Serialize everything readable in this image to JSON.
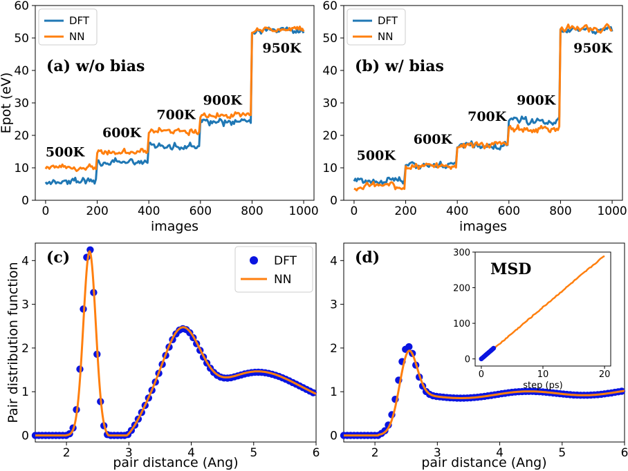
{
  "colors": {
    "dft": "#1f77b4",
    "nn": "#ff7f0e",
    "dft_points": "#0a14e0"
  },
  "chart_data": [
    {
      "id": "a",
      "type": "line",
      "panel_label": "(a)  w/o bias",
      "xlabel": "images",
      "ylabel": "Epot (eV)",
      "xlim": [
        -40,
        1040
      ],
      "ylim": [
        0,
        60
      ],
      "xticks": [
        0,
        200,
        400,
        600,
        800,
        1000
      ],
      "yticks": [
        0,
        10,
        20,
        30,
        40,
        50,
        60
      ],
      "legend": {
        "placement": "top-left",
        "entries": [
          "DFT",
          "NN"
        ]
      },
      "annotations": [
        {
          "text": "500K",
          "x": 0,
          "y": 13.5
        },
        {
          "text": "600K",
          "x": 220,
          "y": 19.5
        },
        {
          "text": "700K",
          "x": 430,
          "y": 25
        },
        {
          "text": "900K",
          "x": 610,
          "y": 29.5
        },
        {
          "text": "950K",
          "x": 840,
          "y": 45.5
        }
      ],
      "series": [
        {
          "name": "DFT",
          "segments": [
            {
              "x": [
                0,
                200
              ],
              "level": 6.0,
              "noise": 1.0
            },
            {
              "x": [
                200,
                400
              ],
              "level": 11.5,
              "noise": 0.9
            },
            {
              "x": [
                400,
                600
              ],
              "level": 17.0,
              "noise": 1.0
            },
            {
              "x": [
                600,
                800
              ],
              "level": 24.0,
              "noise": 1.0
            },
            {
              "x": [
                800,
                1000
              ],
              "level": 52.0,
              "noise": 0.8
            }
          ]
        },
        {
          "name": "NN",
          "segments": [
            {
              "x": [
                0,
                200
              ],
              "level": 10.0,
              "noise": 0.9
            },
            {
              "x": [
                200,
                400
              ],
              "level": 15.0,
              "noise": 0.9
            },
            {
              "x": [
                400,
                600
              ],
              "level": 21.5,
              "noise": 0.9
            },
            {
              "x": [
                600,
                800
              ],
              "level": 26.0,
              "noise": 0.9
            },
            {
              "x": [
                800,
                1000
              ],
              "level": 52.5,
              "noise": 0.8
            }
          ]
        }
      ]
    },
    {
      "id": "b",
      "type": "line",
      "panel_label": "(b)  w/ bias",
      "xlabel": "images",
      "ylabel": "",
      "xlim": [
        -40,
        1040
      ],
      "ylim": [
        0,
        60
      ],
      "xticks": [
        0,
        200,
        400,
        600,
        800,
        1000
      ],
      "yticks": [
        0,
        10,
        20,
        30,
        40,
        50,
        60
      ],
      "legend": {
        "placement": "top-left",
        "entries": [
          "DFT",
          "NN"
        ]
      },
      "annotations": [
        {
          "text": "500K",
          "x": 10,
          "y": 12.5
        },
        {
          "text": "600K",
          "x": 230,
          "y": 17.5
        },
        {
          "text": "700K",
          "x": 440,
          "y": 24.5
        },
        {
          "text": "900K",
          "x": 630,
          "y": 29.5
        },
        {
          "text": "950K",
          "x": 850,
          "y": 45.5
        }
      ],
      "series": [
        {
          "name": "DFT",
          "segments": [
            {
              "x": [
                0,
                200
              ],
              "level": 6.0,
              "noise": 0.9
            },
            {
              "x": [
                200,
                400
              ],
              "level": 11.0,
              "noise": 0.9
            },
            {
              "x": [
                400,
                600
              ],
              "level": 17.0,
              "noise": 1.0
            },
            {
              "x": [
                600,
                800
              ],
              "level": 24.5,
              "noise": 1.1
            },
            {
              "x": [
                800,
                1000
              ],
              "level": 52.5,
              "noise": 0.8
            }
          ]
        },
        {
          "name": "NN",
          "segments": [
            {
              "x": [
                0,
                200
              ],
              "level": 4.5,
              "noise": 0.9
            },
            {
              "x": [
                200,
                400
              ],
              "level": 10.5,
              "noise": 0.9
            },
            {
              "x": [
                400,
                600
              ],
              "level": 17.0,
              "noise": 1.0
            },
            {
              "x": [
                600,
                800
              ],
              "level": 22.0,
              "noise": 1.1
            },
            {
              "x": [
                800,
                1000
              ],
              "level": 53.0,
              "noise": 0.9
            }
          ]
        }
      ]
    },
    {
      "id": "c",
      "type": "line",
      "panel_label": "(c)",
      "xlabel": "pair distance (Ang)",
      "ylabel": "Pair distribution function",
      "xlim": [
        1.5,
        6
      ],
      "ylim": [
        -0.15,
        4.4
      ],
      "xticks": [
        2,
        3,
        4,
        5,
        6
      ],
      "yticks": [
        0,
        1,
        2,
        3,
        4
      ],
      "legend": {
        "placement": "top-right",
        "entries": [
          "DFT",
          "NN"
        ]
      },
      "series": [
        {
          "name": "DFT",
          "style": "markers",
          "peaks": [
            [
              2.36,
              4.32,
              0.1
            ],
            [
              2.92,
              -0.6,
              0.22
            ],
            [
              3.85,
              1.72,
              0.3
            ],
            [
              4.95,
              0.73,
              0.55
            ]
          ],
          "tail": [
            5.7,
            1.12
          ]
        },
        {
          "name": "NN",
          "style": "line",
          "peaks": [
            [
              2.37,
              4.2,
              0.1
            ],
            [
              2.92,
              -0.6,
              0.22
            ],
            [
              3.85,
              1.75,
              0.3
            ],
            [
              4.95,
              0.75,
              0.55
            ]
          ],
          "tail": [
            5.7,
            1.12
          ]
        }
      ]
    },
    {
      "id": "d",
      "type": "line",
      "panel_label": "(d)",
      "xlabel": "pair distance (Ang)",
      "ylabel": "",
      "xlim": [
        1.5,
        6
      ],
      "ylim": [
        -0.15,
        4.4
      ],
      "xticks": [
        2,
        3,
        4,
        5,
        6
      ],
      "yticks": [
        0,
        1,
        2,
        3,
        4
      ],
      "series": [
        {
          "name": "DFT",
          "style": "markers",
          "peak": [
            2.5,
            2.3
          ]
        },
        {
          "name": "NN",
          "style": "line",
          "peak": [
            2.52,
            2.2
          ]
        }
      ],
      "inset": {
        "title": "MSD",
        "xlabel": "step (ps)",
        "xlim": [
          -1,
          21
        ],
        "ylim": [
          -20,
          300
        ],
        "xticks": [
          0,
          10,
          20
        ],
        "yticks": [
          0,
          100,
          200,
          300
        ],
        "series": [
          {
            "name": "DFT",
            "style": "markers",
            "x": [
              0,
              0.5,
              1.0,
              1.5,
              2.0
            ],
            "y": [
              0,
              7,
              14,
              22,
              30
            ]
          },
          {
            "name": "NN",
            "style": "line",
            "x": [
              0,
              2,
              5,
              10,
              15,
              20
            ],
            "y": [
              0,
              28,
              72,
              145,
              218,
              290
            ]
          }
        ]
      }
    }
  ]
}
